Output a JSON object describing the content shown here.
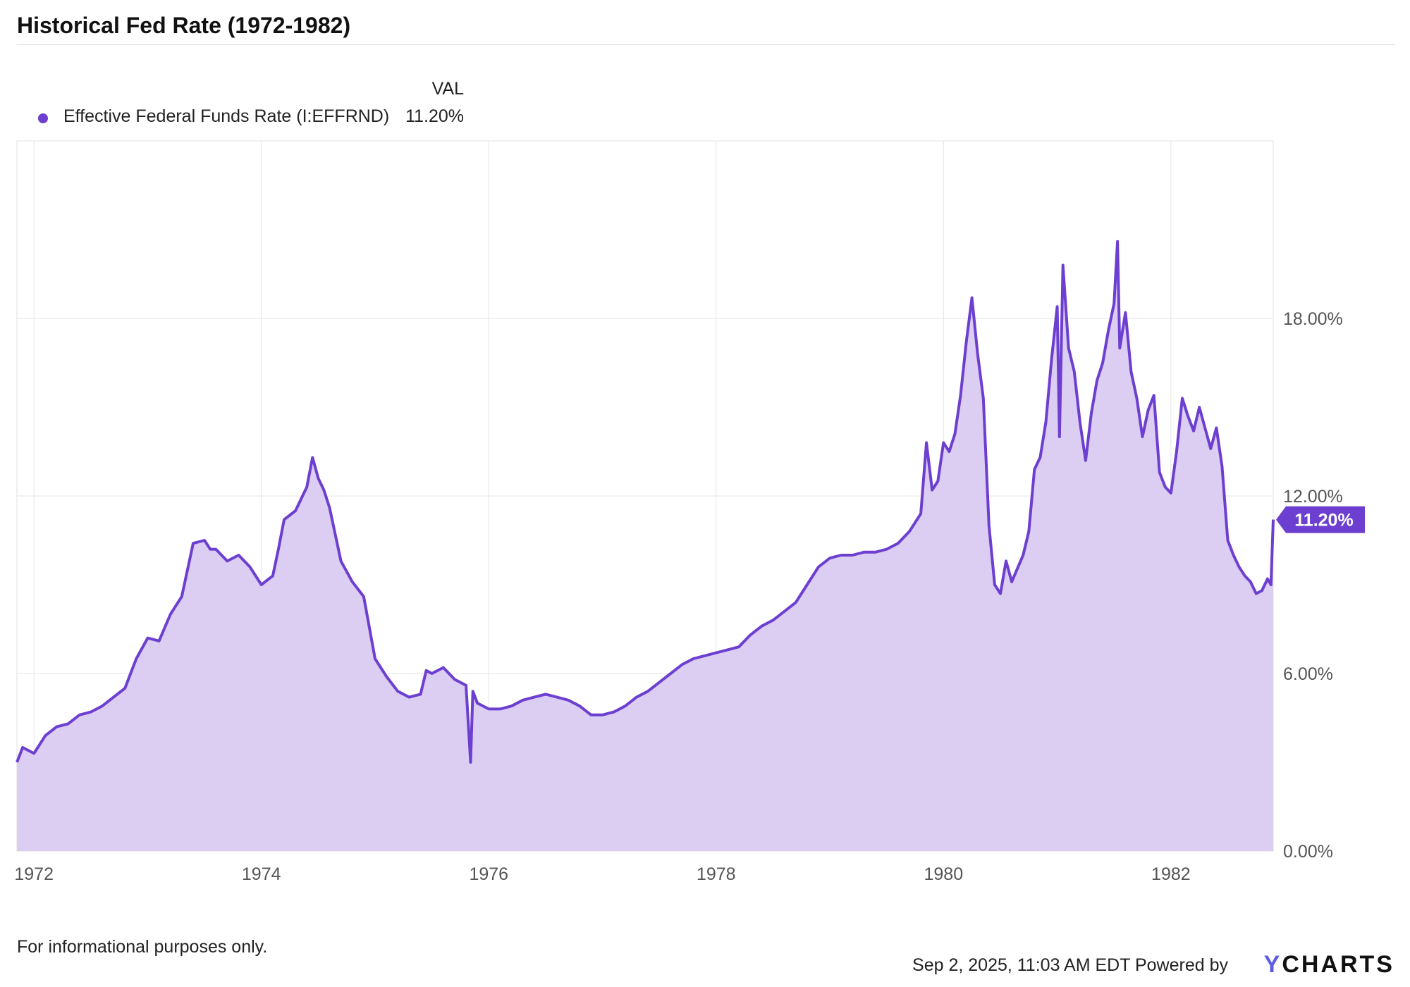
{
  "title": "Historical Fed Rate (1972-1982)",
  "legend": {
    "header": "VAL",
    "series_name": "Effective Federal Funds Rate (I:EFFRND)",
    "series_value": "11.20%",
    "color": "#6c3fd1"
  },
  "footer": {
    "disclaimer": "For informational purposes only.",
    "timestamp": "Sep 2, 2025, 11:03 AM EDT Powered by",
    "brand_y": "Y",
    "brand_rest": "CHARTS"
  },
  "chart_data": {
    "type": "area",
    "title": "Historical Fed Rate (1972-1982)",
    "xlabel": "",
    "ylabel": "",
    "ylim": [
      0,
      24
    ],
    "xlim": [
      1971.85,
      1982.9
    ],
    "grid": true,
    "y_ticks": [
      0,
      6,
      12,
      18
    ],
    "y_tick_labels": [
      "0.00%",
      "6.00%",
      "12.00%",
      "18.00%"
    ],
    "x_ticks": [
      1972,
      1974,
      1976,
      1978,
      1980,
      1982
    ],
    "x_tick_labels": [
      "1972",
      "1974",
      "1976",
      "1978",
      "1980",
      "1982"
    ],
    "line_color": "#6c3fd1",
    "fill_color": "#dccdf3",
    "last_value_label": "11.20%",
    "series": [
      {
        "name": "Effective Federal Funds Rate (I:EFFRND)",
        "x": [
          1971.85,
          1971.9,
          1972.0,
          1972.1,
          1972.2,
          1972.3,
          1972.4,
          1972.5,
          1972.6,
          1972.7,
          1972.8,
          1972.9,
          1973.0,
          1973.1,
          1973.2,
          1973.3,
          1973.4,
          1973.5,
          1973.55,
          1973.6,
          1973.7,
          1973.8,
          1973.9,
          1974.0,
          1974.1,
          1974.15,
          1974.2,
          1974.3,
          1974.4,
          1974.45,
          1974.5,
          1974.55,
          1974.6,
          1974.7,
          1974.8,
          1974.9,
          1975.0,
          1975.1,
          1975.2,
          1975.3,
          1975.4,
          1975.45,
          1975.5,
          1975.6,
          1975.7,
          1975.8,
          1975.84,
          1975.86,
          1975.9,
          1976.0,
          1976.1,
          1976.2,
          1976.3,
          1976.4,
          1976.5,
          1976.6,
          1976.7,
          1976.8,
          1976.9,
          1977.0,
          1977.1,
          1977.2,
          1977.3,
          1977.4,
          1977.5,
          1977.6,
          1977.7,
          1977.8,
          1977.9,
          1978.0,
          1978.1,
          1978.2,
          1978.3,
          1978.4,
          1978.5,
          1978.6,
          1978.7,
          1978.8,
          1978.9,
          1979.0,
          1979.1,
          1979.2,
          1979.3,
          1979.4,
          1979.5,
          1979.6,
          1979.7,
          1979.8,
          1979.85,
          1979.9,
          1979.95,
          1980.0,
          1980.05,
          1980.1,
          1980.15,
          1980.2,
          1980.25,
          1980.3,
          1980.35,
          1980.4,
          1980.45,
          1980.5,
          1980.55,
          1980.6,
          1980.7,
          1980.75,
          1980.8,
          1980.85,
          1980.9,
          1980.95,
          1981.0,
          1981.02,
          1981.05,
          1981.1,
          1981.15,
          1981.2,
          1981.25,
          1981.3,
          1981.35,
          1981.4,
          1981.45,
          1981.5,
          1981.53,
          1981.55,
          1981.6,
          1981.65,
          1981.7,
          1981.75,
          1981.8,
          1981.85,
          1981.9,
          1981.95,
          1982.0,
          1982.05,
          1982.1,
          1982.15,
          1982.2,
          1982.25,
          1982.3,
          1982.35,
          1982.4,
          1982.45,
          1982.5,
          1982.55,
          1982.6,
          1982.65,
          1982.7,
          1982.75,
          1982.8,
          1982.85,
          1982.88,
          1982.9
        ],
        "values": [
          3.0,
          3.5,
          3.3,
          3.9,
          4.2,
          4.3,
          4.6,
          4.7,
          4.9,
          5.2,
          5.5,
          6.5,
          7.2,
          7.1,
          8.0,
          8.6,
          10.4,
          10.5,
          10.2,
          10.2,
          9.8,
          10.0,
          9.6,
          9.0,
          9.3,
          10.2,
          11.2,
          11.5,
          12.3,
          13.3,
          12.6,
          12.2,
          11.6,
          9.8,
          9.1,
          8.6,
          6.5,
          5.9,
          5.4,
          5.2,
          5.3,
          6.1,
          6.0,
          6.2,
          5.8,
          5.6,
          3.0,
          5.4,
          5.0,
          4.8,
          4.8,
          4.9,
          5.1,
          5.2,
          5.3,
          5.2,
          5.1,
          4.9,
          4.6,
          4.6,
          4.7,
          4.9,
          5.2,
          5.4,
          5.7,
          6.0,
          6.3,
          6.5,
          6.6,
          6.7,
          6.8,
          6.9,
          7.3,
          7.6,
          7.8,
          8.1,
          8.4,
          9.0,
          9.6,
          9.9,
          10.0,
          10.0,
          10.1,
          10.1,
          10.2,
          10.4,
          10.8,
          11.4,
          13.8,
          12.2,
          12.5,
          13.8,
          13.5,
          14.1,
          15.4,
          17.2,
          18.7,
          16.8,
          15.3,
          11.0,
          9.0,
          8.7,
          9.8,
          9.1,
          10.0,
          10.8,
          12.9,
          13.3,
          14.5,
          16.6,
          18.4,
          14.0,
          19.8,
          17.0,
          16.2,
          14.5,
          13.2,
          14.8,
          15.9,
          16.5,
          17.6,
          18.5,
          20.6,
          17.0,
          18.2,
          16.2,
          15.3,
          14.0,
          14.9,
          15.4,
          12.8,
          12.3,
          12.1,
          13.5,
          15.3,
          14.7,
          14.2,
          15.0,
          14.3,
          13.6,
          14.3,
          13.0,
          10.5,
          10.0,
          9.6,
          9.3,
          9.1,
          8.7,
          8.8,
          9.2,
          9.0,
          11.2
        ]
      }
    ]
  }
}
